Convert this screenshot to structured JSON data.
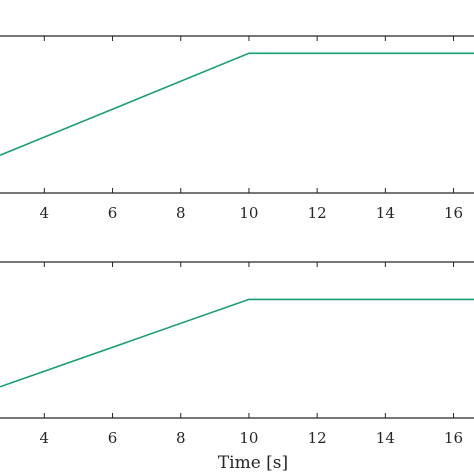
{
  "chart_data": [
    {
      "type": "line",
      "xlim": [
        2.7,
        16.6
      ],
      "ylim": [
        0,
        1
      ],
      "xticks": [
        4,
        6,
        8,
        10,
        12,
        14,
        16
      ],
      "xtick_labels": [
        "4",
        "6",
        "8",
        "10",
        "12",
        "14",
        "16"
      ],
      "grid": false,
      "series": [
        {
          "x": [
            2.7,
            10,
            16.6
          ],
          "y": [
            0.24,
            0.89,
            0.89
          ],
          "color": "#1b9e77"
        }
      ]
    },
    {
      "type": "line",
      "xlim": [
        2.7,
        16.6
      ],
      "ylim": [
        0,
        1
      ],
      "xticks": [
        4,
        6,
        8,
        10,
        12,
        14,
        16
      ],
      "xtick_labels": [
        "4",
        "6",
        "8",
        "10",
        "12",
        "14",
        "16"
      ],
      "xlabel": "Time [s]",
      "grid": false,
      "series": [
        {
          "x": [
            2.7,
            10,
            16.6
          ],
          "y": [
            0.2,
            0.76,
            0.76
          ],
          "color": "#1b9e77"
        }
      ]
    }
  ]
}
